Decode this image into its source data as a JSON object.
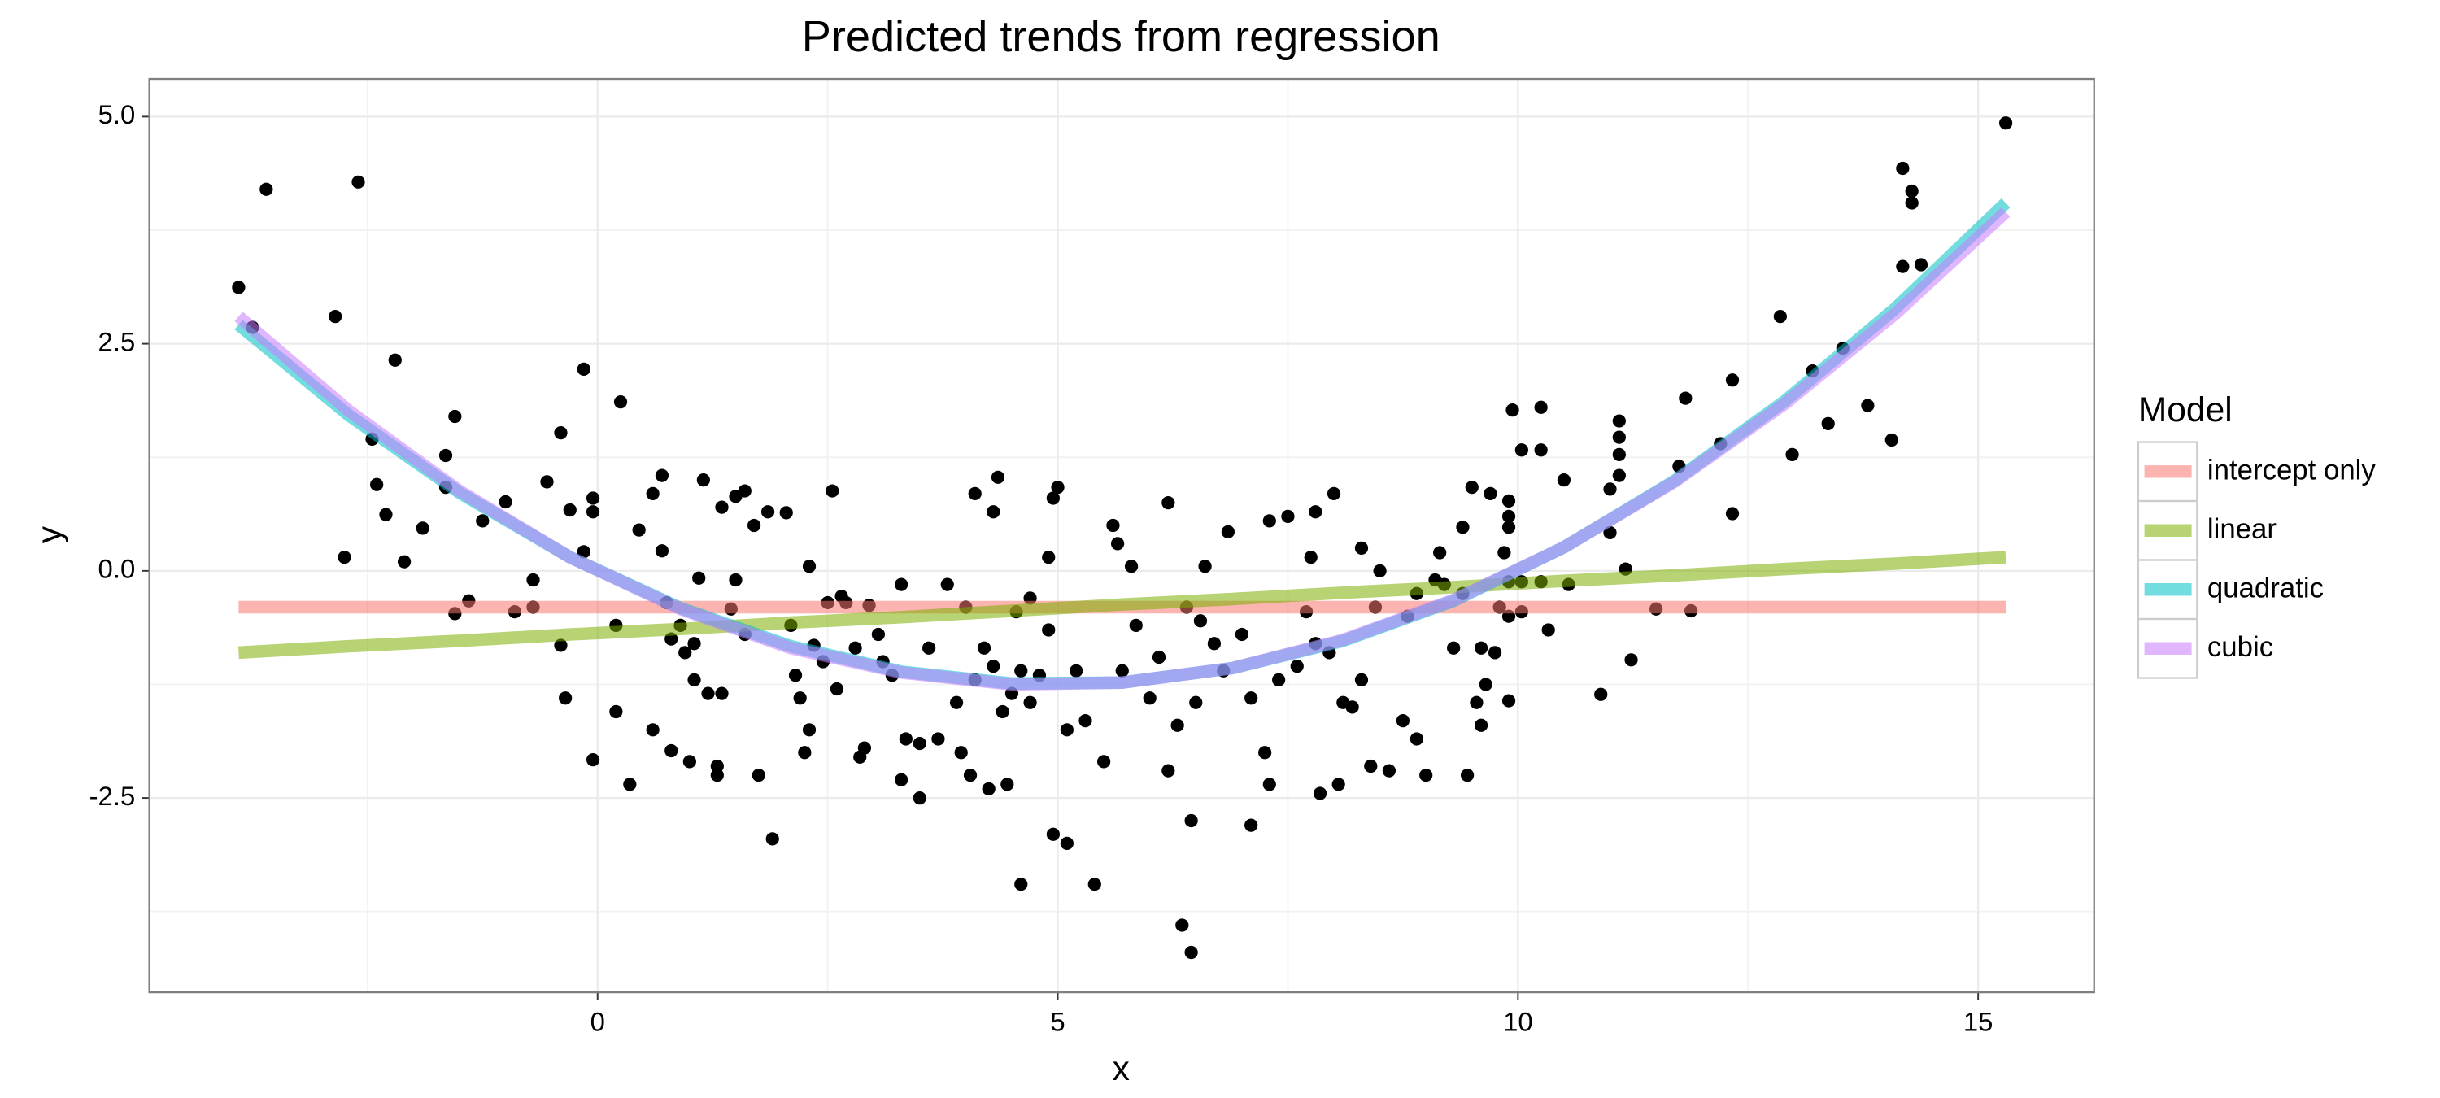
{
  "chart_data": {
    "type": "scatter",
    "title": "Predicted trends from regression",
    "xlabel": "x",
    "ylabel": "y",
    "xlim": [
      -4.87,
      16.26
    ],
    "ylim": [
      -4.64,
      5.415
    ],
    "xticks": [
      0,
      5,
      10,
      15
    ],
    "yticks": [
      -2.5,
      {
        "value": 0,
        "label": "0.0"
      },
      2.5,
      {
        "value": 5,
        "label": "5.0"
      }
    ],
    "grid": true,
    "legend_title": "Model",
    "legend": "right",
    "points": {
      "color": "#000000",
      "x": [
        -3.9,
        -3.75,
        -3.6,
        -2.85,
        -2.6,
        -2.45,
        -2.4,
        -2.75,
        -2.3,
        -2.2,
        -2.1,
        -1.9,
        -1.65,
        -1.65,
        -1.55,
        -1.55,
        -1.4,
        -1.25,
        -1.0,
        -0.9,
        -0.7,
        -0.7,
        -0.55,
        -0.4,
        -0.4,
        -0.35,
        -0.3,
        -0.15,
        -0.15,
        -0.05,
        -0.05,
        -0.05,
        0.2,
        0.2,
        0.25,
        0.35,
        0.45,
        0.6,
        0.6,
        0.7,
        0.7,
        0.75,
        0.8,
        0.8,
        0.9,
        0.95,
        1.0,
        1.05,
        1.05,
        1.1,
        1.15,
        1.2,
        1.3,
        1.3,
        1.35,
        1.35,
        1.45,
        1.5,
        1.5,
        1.6,
        1.6,
        1.7,
        1.75,
        1.85,
        1.9,
        2.05,
        2.1,
        2.15,
        2.2,
        2.25,
        2.3,
        2.3,
        2.35,
        2.45,
        2.5,
        2.55,
        2.6,
        2.65,
        2.7,
        2.8,
        2.85,
        2.9,
        2.95,
        3.05,
        3.1,
        3.2,
        3.3,
        3.3,
        3.35,
        3.5,
        3.5,
        3.6,
        3.7,
        3.8,
        3.9,
        3.95,
        4.0,
        4.05,
        4.1,
        4.1,
        4.2,
        4.25,
        4.3,
        4.3,
        4.35,
        4.4,
        4.45,
        4.5,
        4.55,
        4.6,
        4.6,
        4.7,
        4.7,
        4.8,
        4.9,
        4.9,
        4.95,
        4.95,
        5.0,
        5.1,
        5.1,
        5.2,
        5.3,
        5.4,
        5.5,
        5.6,
        5.65,
        5.7,
        5.8,
        5.85,
        6.0,
        6.1,
        6.2,
        6.2,
        6.3,
        6.35,
        6.4,
        6.45,
        6.45,
        6.5,
        6.55,
        6.6,
        6.7,
        6.8,
        6.85,
        7.0,
        7.1,
        7.1,
        7.25,
        7.3,
        7.3,
        7.4,
        7.5,
        7.6,
        7.7,
        7.75,
        7.8,
        7.8,
        7.85,
        7.95,
        8.0,
        8.05,
        8.1,
        8.2,
        8.3,
        8.3,
        8.4,
        8.45,
        8.5,
        8.6,
        8.75,
        8.8,
        8.9,
        8.9,
        9.0,
        9.1,
        9.15,
        9.2,
        9.3,
        9.4,
        9.4,
        9.45,
        9.5,
        9.55,
        9.6,
        9.6,
        9.65,
        9.7,
        9.75,
        9.8,
        9.85,
        9.9,
        9.94,
        10.04,
        10.25,
        10.25,
        9.9,
        9.9,
        9.9,
        9.9,
        9.9,
        10.04,
        10.04,
        10.25,
        10.33,
        10.5,
        10.55,
        10.9,
        11.0,
        11.0,
        11.1,
        11.1,
        11.1,
        11.1,
        11.17,
        11.23,
        11.5,
        11.75,
        11.82,
        11.88,
        12.2,
        12.33,
        12.33,
        12.85,
        12.98,
        13.2,
        13.37,
        13.53,
        13.8,
        14.06,
        14.18,
        14.18,
        14.28,
        14.28,
        14.38,
        15.3
      ],
      "y": [
        3.12,
        2.68,
        4.2,
        2.8,
        4.28,
        1.45,
        0.95,
        0.15,
        0.62,
        2.32,
        0.1,
        0.47,
        0.92,
        1.27,
        1.7,
        -0.47,
        -0.33,
        0.55,
        0.76,
        -0.45,
        -0.4,
        -0.1,
        0.98,
        1.52,
        -0.82,
        -1.4,
        0.67,
        2.22,
        0.21,
        0.8,
        0.65,
        -2.08,
        -1.55,
        -0.6,
        1.86,
        -2.35,
        0.45,
        0.85,
        -1.75,
        1.05,
        0.22,
        -0.35,
        -0.75,
        -1.98,
        -0.6,
        -0.9,
        -2.1,
        -0.8,
        -1.2,
        -0.08,
        1.0,
        -1.35,
        -2.15,
        -2.25,
        -1.35,
        0.7,
        -0.42,
        0.82,
        -0.1,
        0.88,
        -0.7,
        0.5,
        -2.25,
        0.65,
        -2.95,
        0.64,
        -0.6,
        -1.15,
        -1.4,
        -2.0,
        -1.75,
        0.05,
        -0.82,
        -1.0,
        -0.35,
        0.88,
        -1.3,
        -0.28,
        -0.35,
        -0.85,
        -2.05,
        -1.95,
        -0.38,
        -0.7,
        -1.0,
        -1.15,
        -2.3,
        -0.15,
        -1.85,
        -1.9,
        -2.5,
        -0.85,
        -1.85,
        -0.15,
        -1.45,
        -2.0,
        -0.4,
        -2.25,
        -1.2,
        0.85,
        -0.85,
        -2.4,
        0.65,
        -1.05,
        1.03,
        -1.55,
        -2.35,
        -1.35,
        -0.45,
        -1.1,
        -3.45,
        -0.3,
        -1.45,
        -1.15,
        -0.65,
        0.15,
        0.8,
        -2.9,
        0.92,
        -1.75,
        -3.0,
        -1.1,
        -1.65,
        -3.45,
        -2.1,
        0.5,
        0.3,
        -1.1,
        0.05,
        -0.6,
        -1.4,
        -0.95,
        -2.2,
        0.75,
        -1.7,
        -3.9,
        -0.4,
        -2.75,
        -4.2,
        -1.45,
        -0.55,
        0.05,
        -0.8,
        -1.1,
        0.43,
        -0.7,
        -1.4,
        -2.8,
        -2.0,
        0.55,
        -2.35,
        -1.2,
        0.6,
        -1.05,
        -0.45,
        0.15,
        -0.8,
        0.65,
        -2.45,
        -0.9,
        0.85,
        -2.35,
        -1.45,
        -1.5,
        0.25,
        -1.2,
        -2.15,
        -0.4,
        0.0,
        -2.2,
        -1.65,
        -0.5,
        -1.85,
        -0.25,
        -2.25,
        -0.1,
        0.2,
        -0.15,
        -0.85,
        0.48,
        -0.25,
        -2.25,
        0.92,
        -1.45,
        -0.85,
        -1.7,
        -1.25,
        0.85,
        -0.9,
        -0.4,
        0.2,
        0.77,
        1.77,
        1.33,
        1.8,
        1.33,
        0.6,
        0.48,
        -0.12,
        -0.5,
        -1.43,
        -0.12,
        -0.45,
        -0.12,
        -0.65,
        1.0,
        -0.15,
        -1.36,
        0.9,
        0.42,
        1.65,
        1.47,
        1.05,
        1.28,
        0.02,
        -0.98,
        -0.42,
        1.15,
        1.9,
        -0.44,
        1.4,
        2.1,
        0.63,
        2.8,
        1.28,
        2.2,
        1.62,
        2.45,
        1.82,
        1.44,
        4.43,
        3.35,
        4.05,
        4.18,
        3.37,
        4.93
      ]
    },
    "line_x": [
      -3.9,
      -2.7,
      -1.5,
      -0.3,
      0.9,
      2.1,
      3.3,
      4.5,
      5.7,
      6.9,
      8.1,
      9.3,
      10.5,
      11.7,
      12.9,
      14.1,
      15.3
    ],
    "series": [
      {
        "name": "intercept only",
        "color": "#F8766D",
        "values": [
          -0.4,
          -0.4,
          -0.4,
          -0.4,
          -0.4,
          -0.4,
          -0.4,
          -0.4,
          -0.4,
          -0.4,
          -0.4,
          -0.4,
          -0.4,
          -0.4,
          -0.4,
          -0.4,
          -0.4
        ]
      },
      {
        "name": "linear",
        "color": "#7CAE00",
        "values": [
          -0.9,
          -0.83,
          -0.77,
          -0.7,
          -0.64,
          -0.57,
          -0.51,
          -0.44,
          -0.37,
          -0.31,
          -0.24,
          -0.18,
          -0.11,
          -0.05,
          0.02,
          0.08,
          0.15
        ]
      },
      {
        "name": "quadratic",
        "color": "#00BFC4",
        "values": [
          2.71,
          1.71,
          0.86,
          0.15,
          -0.41,
          -0.83,
          -1.11,
          -1.24,
          -1.23,
          -1.07,
          -0.77,
          -0.33,
          0.26,
          0.99,
          1.87,
          2.89,
          4.05
        ]
      },
      {
        "name": "cubic",
        "color": "#C77CFF",
        "values": [
          2.8,
          1.76,
          0.88,
          0.15,
          -0.42,
          -0.85,
          -1.12,
          -1.25,
          -1.23,
          -1.07,
          -0.76,
          -0.32,
          0.26,
          0.98,
          1.84,
          2.83,
          3.95
        ]
      }
    ]
  }
}
